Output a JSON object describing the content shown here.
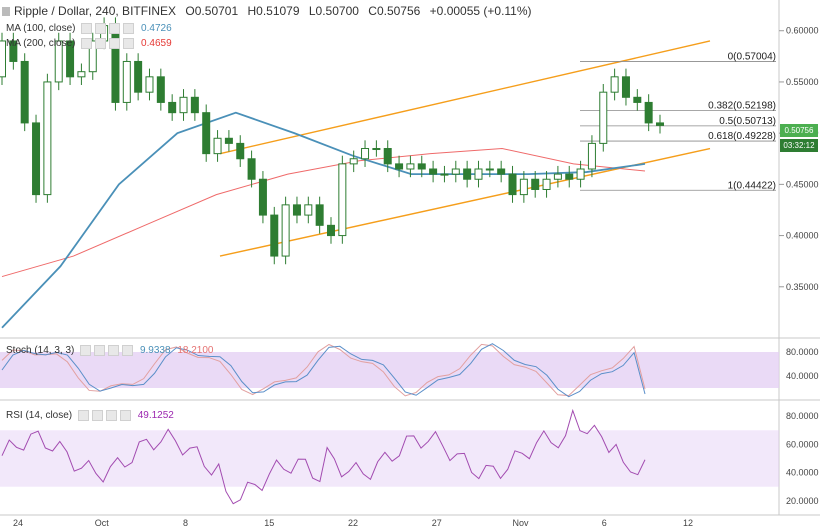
{
  "header": {
    "symbol_icon": "chart-symbol-icon",
    "title": "Ripple / Dollar, 240, BITFINEX",
    "open": "O0.50701",
    "high": "H0.51079",
    "low": "L0.50700",
    "close": "C0.50756",
    "change": "+0.00055 (+0.11%)"
  },
  "indicators": {
    "ma100_label": "MA (100, close)",
    "ma100_value": "0.4726",
    "ma200_label": "MA (200, close)",
    "ma200_value": "0.4659",
    "stoch_label": "Stoch (14, 3, 3)",
    "stoch_k": "9.9338",
    "stoch_d": "18.2100",
    "rsi_label": "RSI (14, close)",
    "rsi_value": "49.1252"
  },
  "price_tags": {
    "last": "0.50756",
    "countdown": "03:32:12"
  },
  "colors": {
    "candle": "#2e7d32",
    "ma100": "#4a90b8",
    "ma200": "#ef6a6a",
    "channel": "#f59e1b",
    "stoch_k": "#5b8fc9",
    "stoch_d": "#e2a0a0",
    "rsi": "#a24bb0",
    "band": "#e3cdf3",
    "last_tag": "#4caf50",
    "countdown_tag": "#2e7d32"
  },
  "chart_data": {
    "type": "candlestick",
    "title": "Ripple / Dollar, 240, BITFINEX",
    "x_ticks": [
      "24",
      "Oct",
      "8",
      "15",
      "22",
      "27",
      "Nov",
      "6",
      "12"
    ],
    "y_ticks": [
      "0.60000",
      "0.55000",
      "0.50000",
      "0.45000",
      "0.40000",
      "0.35000"
    ],
    "ylim": [
      0.3,
      0.63
    ],
    "fib_levels": [
      {
        "label": "0(0.57004)",
        "value": 0.57004
      },
      {
        "label": "0.382(0.52198)",
        "value": 0.52198
      },
      {
        "label": "0.5(0.50713)",
        "value": 0.50713
      },
      {
        "label": "0.618(0.49228)",
        "value": 0.49228
      },
      {
        "label": "1(0.44422)",
        "value": 0.44422
      }
    ],
    "price_path": [
      [
        0.555,
        0.59
      ],
      [
        0.59,
        0.57
      ],
      [
        0.57,
        0.51
      ],
      [
        0.51,
        0.44
      ],
      [
        0.44,
        0.55
      ],
      [
        0.55,
        0.59
      ],
      [
        0.59,
        0.555
      ],
      [
        0.555,
        0.56
      ],
      [
        0.56,
        0.59
      ],
      [
        0.59,
        0.605
      ],
      [
        0.605,
        0.53
      ],
      [
        0.53,
        0.57
      ],
      [
        0.57,
        0.54
      ],
      [
        0.54,
        0.555
      ],
      [
        0.555,
        0.53
      ],
      [
        0.53,
        0.52
      ],
      [
        0.52,
        0.535
      ],
      [
        0.535,
        0.52
      ],
      [
        0.52,
        0.48
      ],
      [
        0.48,
        0.495
      ],
      [
        0.495,
        0.49
      ],
      [
        0.49,
        0.475
      ],
      [
        0.475,
        0.455
      ],
      [
        0.455,
        0.42
      ],
      [
        0.42,
        0.38
      ],
      [
        0.38,
        0.43
      ],
      [
        0.43,
        0.42
      ],
      [
        0.42,
        0.43
      ],
      [
        0.43,
        0.41
      ],
      [
        0.41,
        0.4
      ],
      [
        0.4,
        0.47
      ],
      [
        0.47,
        0.475
      ],
      [
        0.475,
        0.485
      ],
      [
        0.485,
        0.485
      ],
      [
        0.485,
        0.47
      ],
      [
        0.47,
        0.465
      ],
      [
        0.465,
        0.47
      ],
      [
        0.47,
        0.465
      ],
      [
        0.465,
        0.46
      ],
      [
        0.46,
        0.46
      ],
      [
        0.46,
        0.465
      ],
      [
        0.465,
        0.455
      ],
      [
        0.455,
        0.465
      ],
      [
        0.465,
        0.465
      ],
      [
        0.465,
        0.46
      ],
      [
        0.46,
        0.44
      ],
      [
        0.44,
        0.455
      ],
      [
        0.455,
        0.445
      ],
      [
        0.445,
        0.455
      ],
      [
        0.455,
        0.46
      ],
      [
        0.46,
        0.455
      ],
      [
        0.455,
        0.465
      ],
      [
        0.465,
        0.49
      ],
      [
        0.49,
        0.54
      ],
      [
        0.54,
        0.555
      ],
      [
        0.555,
        0.535
      ],
      [
        0.535,
        0.53
      ],
      [
        0.53,
        0.51
      ],
      [
        0.51,
        0.5076
      ]
    ],
    "ma100": [
      0.31,
      0.37,
      0.45,
      0.5,
      0.52,
      0.5,
      0.478,
      0.46,
      0.46,
      0.46,
      0.462,
      0.47
    ],
    "ma200": [
      0.36,
      0.38,
      0.41,
      0.44,
      0.46,
      0.473,
      0.48,
      0.485,
      0.47,
      0.463
    ],
    "channel_upper": [
      0.48,
      0.59
    ],
    "channel_lower": [
      0.38,
      0.485
    ],
    "stochastic": {
      "ticks": [
        "80.0000",
        "40.0000"
      ],
      "band": [
        20,
        80
      ],
      "k_last": 9.9338,
      "d_last": 18.21
    },
    "rsi": {
      "ticks": [
        "80.0000",
        "60.0000",
        "40.0000",
        "20.0000"
      ],
      "band": [
        30,
        70
      ],
      "last": 49.1252
    }
  }
}
